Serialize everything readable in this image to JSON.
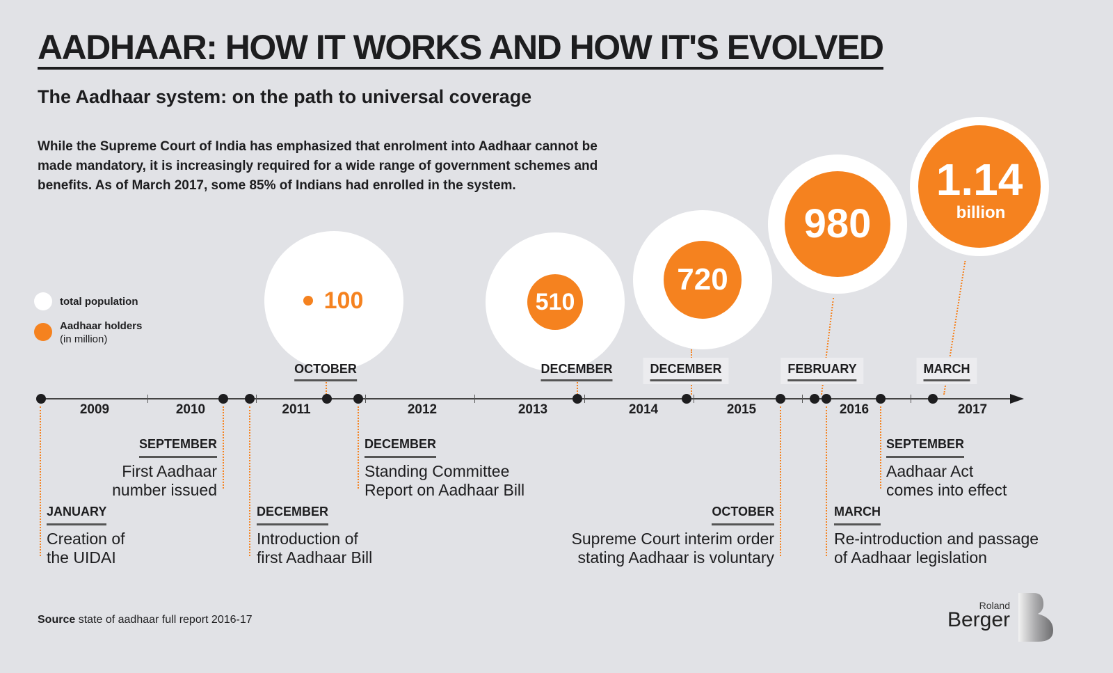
{
  "title": "AADHAAR: HOW IT WORKS AND HOW IT'S EVOLVED",
  "subtitle": "The Aadhaar system: on the path to universal coverage",
  "intro": "While the Supreme Court of India has emphasized that enrolment into Aadhaar cannot be made mandatory, it is increasingly required for a wide range of government schemes and benefits. As of March 2017, some 85% of Indians had enrolled in the system.",
  "legend": {
    "total": "total population",
    "holders": "Aadhaar holders",
    "unit": "(in million)"
  },
  "colors": {
    "accent": "#f5821f",
    "background": "#e1e2e6",
    "population": "#ffffff"
  },
  "milestones": [
    {
      "month": "OCTOBER",
      "year": "2011",
      "value": "100"
    },
    {
      "month": "DECEMBER",
      "year": "2013",
      "value": "510"
    },
    {
      "month": "DECEMBER",
      "year": "2014",
      "value": "720"
    },
    {
      "month": "FEBRUARY",
      "year": "2016",
      "value": "980"
    },
    {
      "month": "MARCH",
      "year": "2017",
      "value": "1.14",
      "unit": "billion"
    }
  ],
  "years": [
    "2009",
    "2010",
    "2011",
    "2012",
    "2013",
    "2014",
    "2015",
    "2016",
    "2017"
  ],
  "events": [
    {
      "month": "JANUARY",
      "text1": "Creation of",
      "text2": "the UIDAI"
    },
    {
      "month": "SEPTEMBER",
      "text1": "First Aadhaar",
      "text2": "number issued"
    },
    {
      "month": "DECEMBER",
      "text1": "Introduction of",
      "text2": "first Aadhaar Bill"
    },
    {
      "month": "DECEMBER",
      "text1": "Standing Committee",
      "text2": "Report on Aadhaar Bill"
    },
    {
      "month": "OCTOBER",
      "text1": "Supreme Court interim order",
      "text2": "stating Aadhaar is voluntary"
    },
    {
      "month": "SEPTEMBER",
      "text1": "Aadhaar Act",
      "text2": "comes into effect"
    },
    {
      "month": "MARCH",
      "text1": "Re-introduction and passage",
      "text2": "of Aadhaar legislation"
    }
  ],
  "source": {
    "label": "Source",
    "text": "state of aadhaar full report 2016-17"
  },
  "logo": {
    "line1": "Roland",
    "line2": "Berger"
  }
}
